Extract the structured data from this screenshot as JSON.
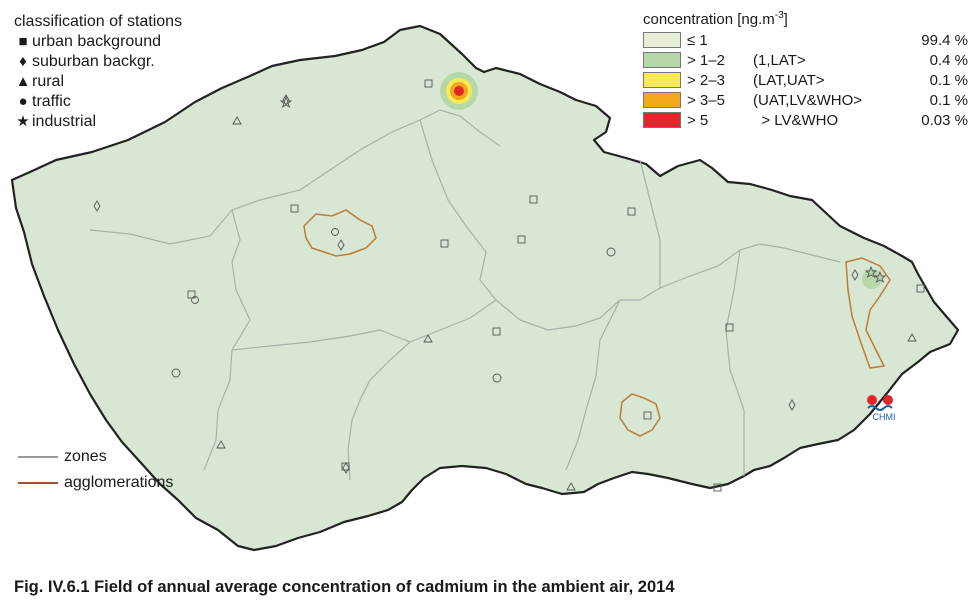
{
  "station_legend": {
    "title": "classification of stations",
    "items": [
      {
        "symbol": "■",
        "label": "urban background"
      },
      {
        "symbol": "♦",
        "label": "suburban backgr."
      },
      {
        "symbol": "▲",
        "label": "rural"
      },
      {
        "symbol": "●",
        "label": "traffic"
      },
      {
        "symbol": "★",
        "label": "industrial"
      }
    ]
  },
  "concentration_legend": {
    "title_main": "concentration [ng.m",
    "title_sup": "-3",
    "title_end": "]",
    "classes": [
      {
        "range": "≤ 1",
        "class": "",
        "percent": "99.4 %",
        "color": "#e6eed8"
      },
      {
        "range": "> 1–2",
        "class": "(1,LAT>",
        "percent": "0.4 %",
        "color": "#b6d8a8"
      },
      {
        "range": "> 2–3",
        "class": "(LAT,UAT>",
        "percent": "0.1 %",
        "color": "#f7ea58"
      },
      {
        "range": "> 3–5",
        "class": "(UAT,LV&WHO>",
        "percent": "0.1 %",
        "color": "#f2a71d"
      },
      {
        "range": "> 5",
        "class": "  > LV&WHO",
        "percent": "0.03 %",
        "color": "#e3262b"
      }
    ]
  },
  "line_legend": {
    "zones": {
      "label": "zones",
      "color": "#9a9a9a"
    },
    "agglomerations": {
      "label": "agglomerations",
      "color": "#a0522d"
    }
  },
  "colors": {
    "map_fill": "#d8e7d3",
    "border": "#222222",
    "zone_line": "#a8b0a8",
    "agglomeration_line": "#c07a35"
  },
  "logo": {
    "text": "CHMI"
  },
  "caption": "Fig. IV.6.1  Field of annual average concentration of cadmium in the ambient air, 2014"
}
